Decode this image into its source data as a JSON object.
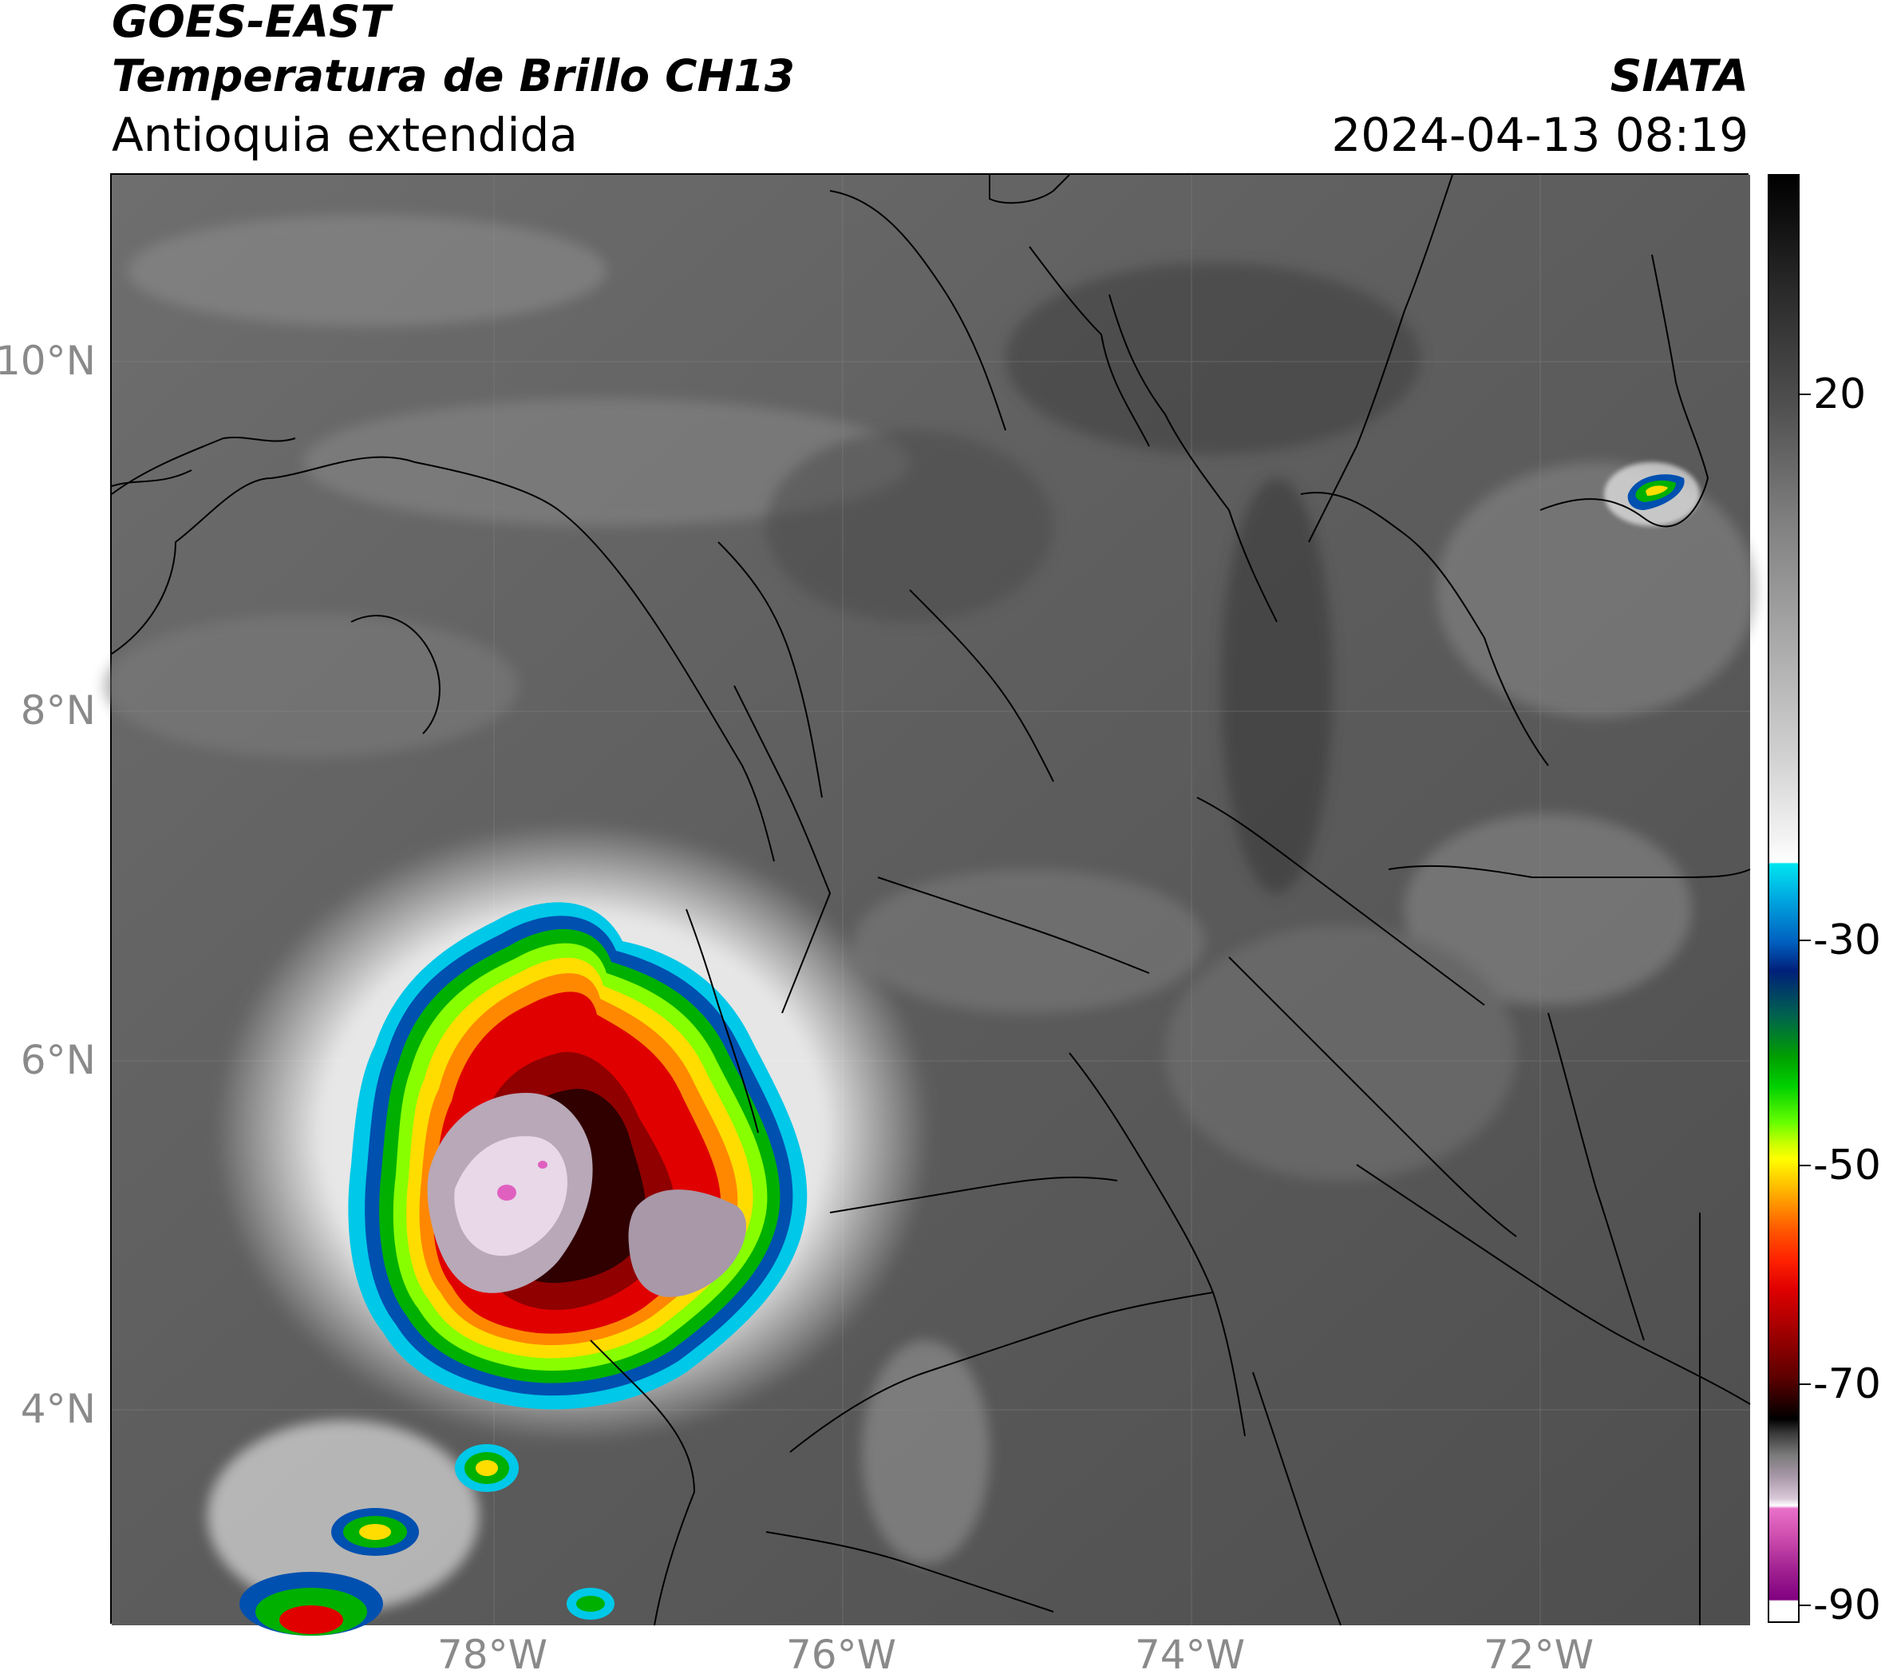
{
  "header": {
    "title_line1": "GOES-EAST",
    "title_line2": "Temperatura de Brillo CH13",
    "subtitle": "Antioquia extendida",
    "brand": "SIATA",
    "timestamp": "2024-04-13 08:19"
  },
  "map": {
    "lat_labels": [
      "10°N",
      "8°N",
      "6°N",
      "4°N"
    ],
    "lon_labels": [
      "78°W",
      "76°W",
      "74°W",
      "72°W"
    ],
    "gridlines": true,
    "lon_range": [
      -80.2,
      -70.8
    ],
    "lat_range": [
      2.8,
      11.1
    ]
  },
  "colorbar": {
    "tick_labels": [
      "20",
      "-30",
      "-50",
      "-70",
      "-90"
    ],
    "range": [
      -92,
      35
    ],
    "colors": {
      "gray_scale": [
        "#000000",
        "#ffffff"
      ],
      "cyan": "#00e5f0",
      "blue": "#0050b0",
      "navy": "#00207a",
      "green": "#00c000",
      "lime": "#66ff00",
      "yellow": "#ffff00",
      "orange": "#ff9900",
      "red": "#e00000",
      "dark_red": "#600000",
      "pink": "#e060c0",
      "purple": "#800080"
    }
  }
}
